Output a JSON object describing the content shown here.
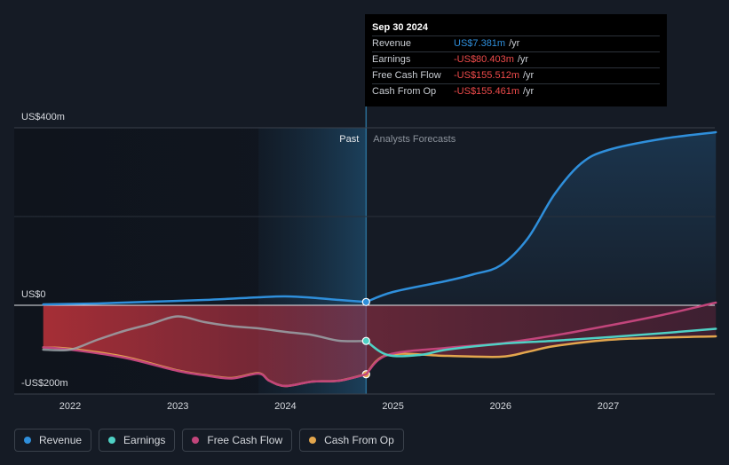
{
  "chart_data": {
    "type": "line",
    "title": "",
    "xlabel": "",
    "ylabel": "",
    "x_ticks": [
      "2022",
      "2023",
      "2024",
      "2025",
      "2026",
      "2027"
    ],
    "y_labels": {
      "top": "US$400m",
      "zero": "US$0",
      "bottom": "-US$200m"
    },
    "ylim": [
      -200,
      400
    ],
    "section_labels": {
      "past": "Past",
      "forecast": "Analysts Forecasts"
    },
    "divider_x": 2024.75,
    "series": [
      {
        "name": "Revenue",
        "color": "#2f8fdb",
        "points": [
          [
            2021.75,
            2
          ],
          [
            2022.25,
            4
          ],
          [
            2022.75,
            8
          ],
          [
            2023.25,
            12
          ],
          [
            2023.75,
            18
          ],
          [
            2024.0,
            20
          ],
          [
            2024.25,
            17
          ],
          [
            2024.5,
            12
          ],
          [
            2024.75,
            7.381
          ],
          [
            2025.0,
            30
          ],
          [
            2025.5,
            55
          ],
          [
            2025.75,
            70
          ],
          [
            2026.0,
            90
          ],
          [
            2026.25,
            150
          ],
          [
            2026.5,
            250
          ],
          [
            2026.75,
            320
          ],
          [
            2027.0,
            350
          ],
          [
            2027.5,
            375
          ],
          [
            2028.0,
            390
          ]
        ]
      },
      {
        "name": "Earnings",
        "color": "#4fd1c5",
        "points": [
          [
            2021.75,
            -100
          ],
          [
            2022.0,
            -100
          ],
          [
            2022.25,
            -78
          ],
          [
            2022.5,
            -58
          ],
          [
            2022.75,
            -42
          ],
          [
            2023.0,
            -25
          ],
          [
            2023.25,
            -38
          ],
          [
            2023.5,
            -47
          ],
          [
            2023.75,
            -52
          ],
          [
            2024.0,
            -60
          ],
          [
            2024.25,
            -67
          ],
          [
            2024.5,
            -80
          ],
          [
            2024.75,
            -80.403
          ],
          [
            2024.95,
            -112
          ],
          [
            2025.25,
            -112
          ],
          [
            2025.5,
            -100
          ],
          [
            2026.0,
            -87
          ],
          [
            2026.5,
            -80
          ],
          [
            2027.0,
            -72
          ],
          [
            2027.5,
            -63
          ],
          [
            2028.0,
            -53
          ]
        ]
      },
      {
        "name": "Free Cash Flow",
        "color": "#c2457b",
        "points": [
          [
            2021.75,
            -95
          ],
          [
            2022.0,
            -100
          ],
          [
            2022.5,
            -118
          ],
          [
            2023.0,
            -148
          ],
          [
            2023.25,
            -158
          ],
          [
            2023.5,
            -165
          ],
          [
            2023.75,
            -154
          ],
          [
            2023.85,
            -170
          ],
          [
            2024.0,
            -182
          ],
          [
            2024.25,
            -172
          ],
          [
            2024.5,
            -170
          ],
          [
            2024.75,
            -155.512
          ],
          [
            2024.95,
            -112
          ],
          [
            2025.5,
            -96
          ],
          [
            2026.0,
            -86
          ],
          [
            2026.5,
            -68
          ],
          [
            2027.0,
            -46
          ],
          [
            2027.5,
            -22
          ],
          [
            2028.0,
            6
          ]
        ]
      },
      {
        "name": "Cash From Op",
        "color": "#e3a64d",
        "points": [
          [
            2021.75,
            -95
          ],
          [
            2022.0,
            -98
          ],
          [
            2022.5,
            -116
          ],
          [
            2023.0,
            -147
          ],
          [
            2023.25,
            -157
          ],
          [
            2023.5,
            -164
          ],
          [
            2023.75,
            -153
          ],
          [
            2023.85,
            -170
          ],
          [
            2024.0,
            -182
          ],
          [
            2024.25,
            -172
          ],
          [
            2024.5,
            -170
          ],
          [
            2024.75,
            -155.461
          ],
          [
            2024.95,
            -112
          ],
          [
            2025.5,
            -114
          ],
          [
            2026.0,
            -116
          ],
          [
            2026.25,
            -105
          ],
          [
            2026.5,
            -92
          ],
          [
            2027.0,
            -78
          ],
          [
            2027.5,
            -73
          ],
          [
            2028.0,
            -70
          ]
        ]
      }
    ],
    "tooltip": {
      "date": "Sep 30 2024",
      "rows": [
        {
          "label": "Revenue",
          "value": "US$7.381m",
          "unit": "/yr",
          "color": "#2f8fdb"
        },
        {
          "label": "Earnings",
          "value": "-US$80.403m",
          "unit": "/yr",
          "color": "#ef4b4b"
        },
        {
          "label": "Free Cash Flow",
          "value": "-US$155.512m",
          "unit": "/yr",
          "color": "#ef4b4b"
        },
        {
          "label": "Cash From Op",
          "value": "-US$155.461m",
          "unit": "/yr",
          "color": "#ef4b4b"
        }
      ]
    },
    "legend": [
      {
        "label": "Revenue",
        "color": "#2f8fdb"
      },
      {
        "label": "Earnings",
        "color": "#4fd1c5"
      },
      {
        "label": "Free Cash Flow",
        "color": "#c2457b"
      },
      {
        "label": "Cash From Op",
        "color": "#e3a64d"
      }
    ]
  }
}
